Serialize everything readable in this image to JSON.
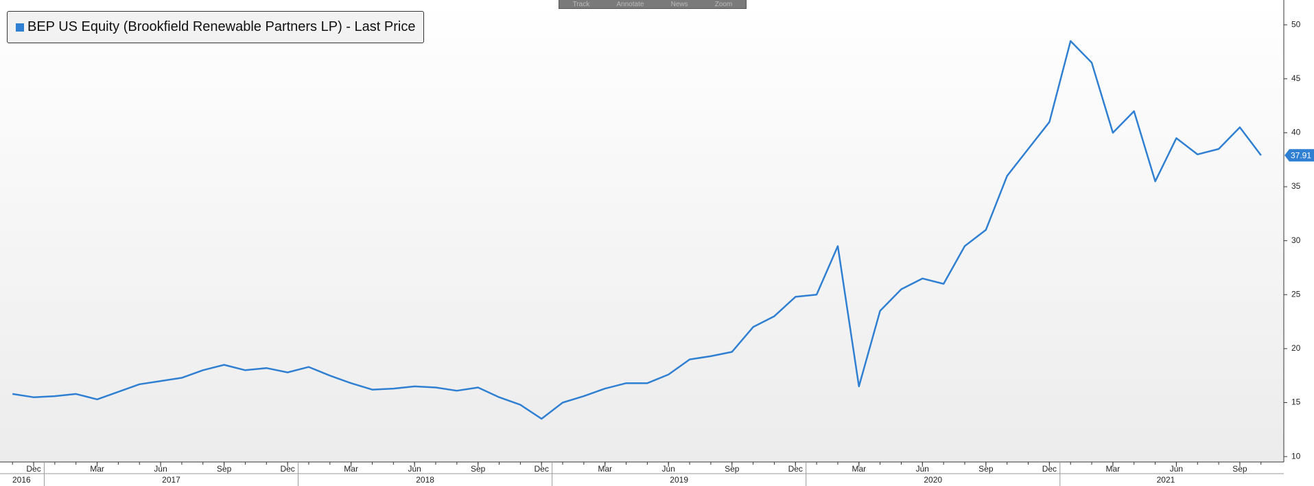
{
  "toolbar": [
    "Track",
    "Annotate",
    "News",
    "Zoom"
  ],
  "chart_data": {
    "type": "line",
    "title": "BEP US Equity (Brookfield Renewable Partners LP) - Last Price",
    "x": [
      "2016-11",
      "2016-12",
      "2017-01",
      "2017-02",
      "2017-03",
      "2017-04",
      "2017-05",
      "2017-06",
      "2017-07",
      "2017-08",
      "2017-09",
      "2017-10",
      "2017-11",
      "2017-12",
      "2018-01",
      "2018-02",
      "2018-03",
      "2018-04",
      "2018-05",
      "2018-06",
      "2018-07",
      "2018-08",
      "2018-09",
      "2018-10",
      "2018-11",
      "2018-12",
      "2019-01",
      "2019-02",
      "2019-03",
      "2019-04",
      "2019-05",
      "2019-06",
      "2019-07",
      "2019-08",
      "2019-09",
      "2019-10",
      "2019-11",
      "2019-12",
      "2020-01",
      "2020-02",
      "2020-03",
      "2020-04",
      "2020-05",
      "2020-06",
      "2020-07",
      "2020-08",
      "2020-09",
      "2020-10",
      "2020-11",
      "2020-12",
      "2021-01",
      "2021-02",
      "2021-03",
      "2021-04",
      "2021-05",
      "2021-06",
      "2021-07",
      "2021-08",
      "2021-09",
      "2021-10"
    ],
    "series": [
      {
        "name": "BEP US Equity (Brookfield Renewable Partners LP) - Last Price",
        "color": "#2f7fd2",
        "values": [
          15.8,
          15.5,
          15.6,
          15.8,
          15.3,
          16.0,
          16.7,
          17.0,
          17.3,
          18.0,
          18.5,
          18.0,
          18.2,
          17.8,
          18.3,
          17.5,
          16.8,
          16.2,
          16.3,
          16.5,
          16.4,
          16.1,
          16.4,
          15.5,
          14.8,
          13.5,
          15.0,
          15.6,
          16.3,
          16.8,
          16.8,
          17.6,
          19.0,
          19.3,
          19.7,
          22.0,
          23.0,
          24.8,
          25.0,
          29.5,
          16.5,
          23.5,
          25.5,
          26.5,
          26.0,
          29.5,
          31.0,
          36.0,
          38.5,
          41.0,
          48.5,
          46.5,
          40.0,
          42.0,
          35.5,
          39.5,
          38.0,
          38.5,
          40.5,
          37.91
        ]
      }
    ],
    "ylim": [
      9.5,
      52.3
    ],
    "yticks": [
      10,
      15,
      20,
      25,
      30,
      35,
      40,
      45,
      50
    ],
    "xticks": [
      {
        "value": "2016-12",
        "label": "Dec"
      },
      {
        "value": "2017-03",
        "label": "Mar"
      },
      {
        "value": "2017-06",
        "label": "Jun"
      },
      {
        "value": "2017-09",
        "label": "Sep"
      },
      {
        "value": "2017-12",
        "label": "Dec"
      },
      {
        "value": "2018-03",
        "label": "Mar"
      },
      {
        "value": "2018-06",
        "label": "Jun"
      },
      {
        "value": "2018-09",
        "label": "Sep"
      },
      {
        "value": "2018-12",
        "label": "Dec"
      },
      {
        "value": "2019-03",
        "label": "Mar"
      },
      {
        "value": "2019-06",
        "label": "Jun"
      },
      {
        "value": "2019-09",
        "label": "Sep"
      },
      {
        "value": "2019-12",
        "label": "Dec"
      },
      {
        "value": "2020-03",
        "label": "Mar"
      },
      {
        "value": "2020-06",
        "label": "Jun"
      },
      {
        "value": "2020-09",
        "label": "Sep"
      },
      {
        "value": "2020-12",
        "label": "Dec"
      },
      {
        "value": "2021-03",
        "label": "Mar"
      },
      {
        "value": "2021-06",
        "label": "Jun"
      },
      {
        "value": "2021-09",
        "label": "Sep"
      }
    ],
    "years": [
      "2016",
      "2017",
      "2018",
      "2019",
      "2020",
      "2021"
    ],
    "legend": "upper left"
  }
}
